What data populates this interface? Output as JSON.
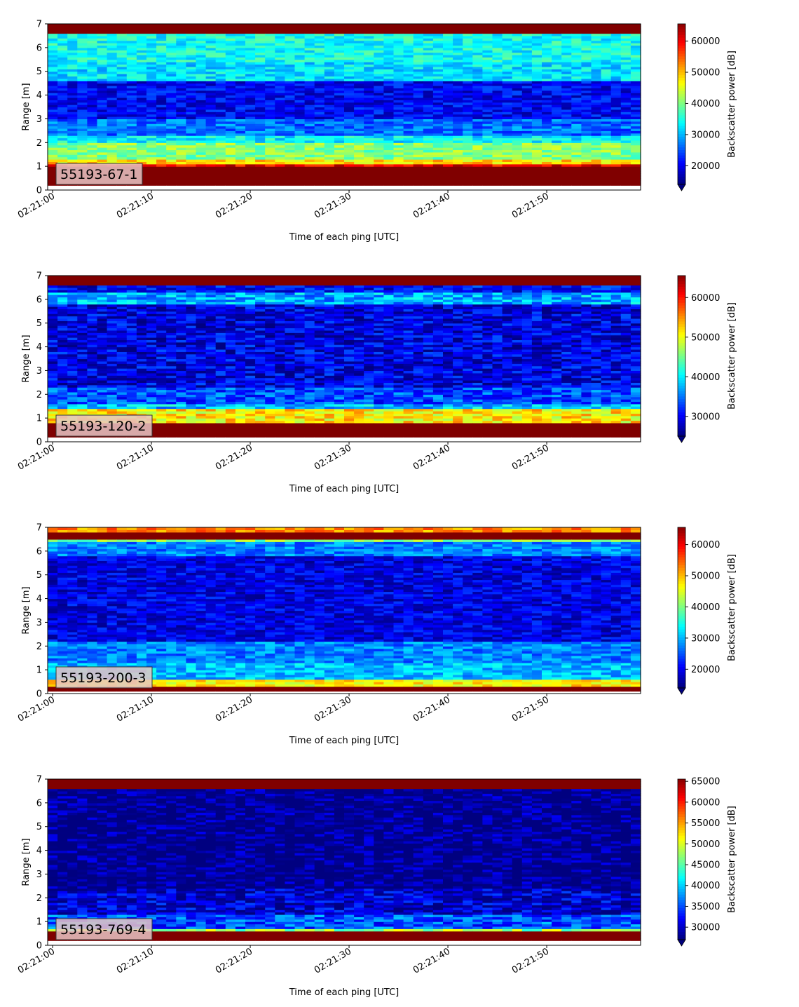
{
  "chart_data": [
    {
      "type": "heatmap",
      "label": "55193-67-1",
      "xlabel": "Time of each ping [UTC]",
      "ylabel": "Range [m]",
      "colorbar_label": "Backscatter power [dB]",
      "x_ticks": [
        "02:21:00",
        "02:21:10",
        "02:21:20",
        "02:21:30",
        "02:21:40",
        "02:21:50"
      ],
      "xlim_seconds": [
        -0.5,
        59.5
      ],
      "ylim": [
        0,
        7
      ],
      "y_ticks": [
        0,
        1,
        2,
        3,
        4,
        5,
        6,
        7
      ],
      "clim": [
        14000,
        65535
      ],
      "colorbar_ticks": [
        20000,
        30000,
        40000,
        50000,
        60000
      ],
      "colormap": "jet",
      "profile": [
        {
          "range": [
            0.0,
            0.2
          ],
          "value": 0
        },
        {
          "range": [
            0.2,
            1.0
          ],
          "value": 65535
        },
        {
          "range": [
            1.0,
            1.15
          ],
          "value": 60000
        },
        {
          "range": [
            1.15,
            1.35
          ],
          "value": 48000
        },
        {
          "range": [
            1.35,
            2.05
          ],
          "value": 40000
        },
        {
          "range": [
            2.05,
            2.35
          ],
          "value": 33000
        },
        {
          "range": [
            2.35,
            3.0
          ],
          "value": 26000
        },
        {
          "range": [
            3.0,
            4.6
          ],
          "value": 20000
        },
        {
          "range": [
            4.6,
            5.4
          ],
          "value": 32000
        },
        {
          "range": [
            5.4,
            6.6
          ],
          "value": 34000
        },
        {
          "range": [
            6.6,
            7.0
          ],
          "value": 65535
        }
      ]
    },
    {
      "type": "heatmap",
      "label": "55193-120-2",
      "xlabel": "Time of each ping [UTC]",
      "ylabel": "Range [m]",
      "colorbar_label": "Backscatter power [dB]",
      "x_ticks": [
        "02:21:00",
        "02:21:10",
        "02:21:20",
        "02:21:30",
        "02:21:40",
        "02:21:50"
      ],
      "xlim_seconds": [
        -0.5,
        59.5
      ],
      "ylim": [
        0,
        7
      ],
      "y_ticks": [
        0,
        1,
        2,
        3,
        4,
        5,
        6,
        7
      ],
      "clim": [
        25000,
        65535
      ],
      "colorbar_ticks": [
        30000,
        40000,
        50000,
        60000
      ],
      "colormap": "jet",
      "profile": [
        {
          "range": [
            0.0,
            0.2
          ],
          "value": 0
        },
        {
          "range": [
            0.2,
            0.8
          ],
          "value": 65535
        },
        {
          "range": [
            0.8,
            1.45
          ],
          "value": 51000
        },
        {
          "range": [
            1.45,
            1.6
          ],
          "value": 38000
        },
        {
          "range": [
            1.6,
            2.3
          ],
          "value": 33000
        },
        {
          "range": [
            2.3,
            5.8
          ],
          "value": 29000
        },
        {
          "range": [
            5.8,
            6.35
          ],
          "value": 37000
        },
        {
          "range": [
            6.35,
            6.6
          ],
          "value": 30000
        },
        {
          "range": [
            6.6,
            7.0
          ],
          "value": 65535
        }
      ]
    },
    {
      "type": "heatmap",
      "label": "55193-200-3",
      "xlabel": "Time of each ping [UTC]",
      "ylabel": "Range [m]",
      "colorbar_label": "Backscatter power [dB]",
      "x_ticks": [
        "02:21:00",
        "02:21:10",
        "02:21:20",
        "02:21:30",
        "02:21:40",
        "02:21:50"
      ],
      "xlim_seconds": [
        -0.5,
        59.5
      ],
      "ylim": [
        0,
        7
      ],
      "y_ticks": [
        0,
        1,
        2,
        3,
        4,
        5,
        6,
        7
      ],
      "clim": [
        14000,
        65535
      ],
      "colorbar_ticks": [
        20000,
        30000,
        40000,
        50000,
        60000
      ],
      "colormap": "jet",
      "profile": [
        {
          "range": [
            0.0,
            0.1
          ],
          "value": 0
        },
        {
          "range": [
            0.1,
            0.35
          ],
          "value": 65535
        },
        {
          "range": [
            0.35,
            0.6
          ],
          "value": 47000
        },
        {
          "range": [
            0.6,
            1.3
          ],
          "value": 30000
        },
        {
          "range": [
            1.3,
            2.2
          ],
          "value": 27000
        },
        {
          "range": [
            2.2,
            5.8
          ],
          "value": 19000
        },
        {
          "range": [
            5.8,
            6.4
          ],
          "value": 27000
        },
        {
          "range": [
            6.4,
            6.55
          ],
          "value": 40000
        },
        {
          "range": [
            6.55,
            6.8
          ],
          "value": 65535
        },
        {
          "range": [
            6.8,
            7.0
          ],
          "value": 52000
        }
      ]
    },
    {
      "type": "heatmap",
      "label": "55193-769-4",
      "xlabel": "Time of each ping [UTC]",
      "ylabel": "Range [m]",
      "colorbar_label": "Backscatter power [dB]",
      "x_ticks": [
        "02:21:00",
        "02:21:10",
        "02:21:20",
        "02:21:30",
        "02:21:40",
        "02:21:50"
      ],
      "xlim_seconds": [
        -0.5,
        59.5
      ],
      "ylim": [
        0,
        7
      ],
      "y_ticks": [
        0,
        1,
        2,
        3,
        4,
        5,
        6,
        7
      ],
      "clim": [
        27000,
        65535
      ],
      "colorbar_ticks": [
        30000,
        35000,
        40000,
        45000,
        50000,
        55000,
        60000,
        65000
      ],
      "colormap": "jet",
      "profile": [
        {
          "range": [
            0.0,
            0.2
          ],
          "value": 0
        },
        {
          "range": [
            0.2,
            0.65
          ],
          "value": 65535
        },
        {
          "range": [
            0.65,
            0.75
          ],
          "value": 47000
        },
        {
          "range": [
            0.75,
            1.3
          ],
          "value": 35000
        },
        {
          "range": [
            1.3,
            2.4
          ],
          "value": 30000
        },
        {
          "range": [
            2.4,
            6.6
          ],
          "value": 27000
        },
        {
          "range": [
            6.6,
            7.0
          ],
          "value": 65535
        }
      ]
    }
  ]
}
